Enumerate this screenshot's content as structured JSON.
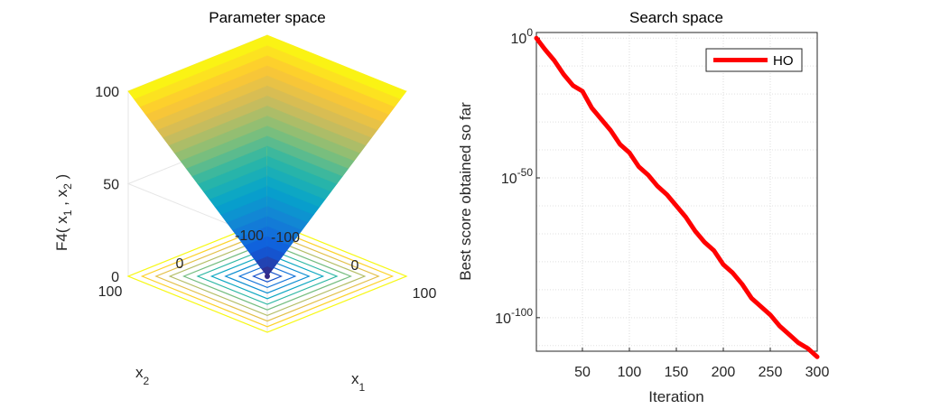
{
  "chart_data": [
    {
      "type": "surface",
      "title": "Parameter space",
      "xlabel": "x",
      "xlabel_sub": "1",
      "ylabel": "x",
      "ylabel_sub": "2",
      "zlabel_prefix": "F4( x",
      "zlabel_sub1": "1",
      "zlabel_mid": " , x",
      "zlabel_sub2": "2",
      "zlabel_suffix": " )",
      "function": "max(|x1|, |x2|)",
      "xlim": [
        -100,
        100
      ],
      "ylim": [
        -100,
        100
      ],
      "zlim": [
        0,
        100
      ],
      "x_ticks": [
        "-100",
        "0",
        "100"
      ],
      "y_ticks": [
        "-100",
        "0",
        "100"
      ],
      "z_ticks": [
        "0",
        "50",
        "100"
      ],
      "contour_levels": [
        10,
        20,
        30,
        40,
        50,
        60,
        70,
        80,
        90,
        100
      ],
      "colormap": [
        "#352a87",
        "#0f5cdd",
        "#1481d6",
        "#06a4ca",
        "#2eb7a4",
        "#87bf77",
        "#d1bb59",
        "#fec832",
        "#f9fb0e"
      ]
    },
    {
      "type": "line",
      "title": "Search space",
      "xlabel": "Iteration",
      "ylabel": "Best score obtained so far",
      "yscale": "log",
      "xlim": [
        1,
        300
      ],
      "ylim_exp": [
        -112,
        2
      ],
      "x_ticks": [
        50,
        100,
        150,
        200,
        250,
        300
      ],
      "y_tick_base": "10",
      "y_tick_exps": [
        "0",
        "-50",
        "-100"
      ],
      "legend_location": "top-right",
      "series": [
        {
          "name": "HO",
          "color": "#ff0000",
          "x": [
            1,
            10,
            20,
            30,
            40,
            50,
            60,
            70,
            80,
            90,
            100,
            110,
            120,
            130,
            140,
            150,
            160,
            170,
            180,
            190,
            200,
            210,
            220,
            230,
            240,
            250,
            260,
            270,
            280,
            290,
            300
          ],
          "log10_y": [
            0,
            -4,
            -8,
            -13,
            -17,
            -19,
            -25,
            -29,
            -33,
            -38,
            -41,
            -46,
            -49,
            -53,
            -56,
            -60,
            -64,
            -69,
            -73,
            -76,
            -81,
            -84,
            -88,
            -93,
            -96,
            -99,
            -103,
            -106,
            -109,
            -111,
            -114
          ]
        }
      ]
    }
  ]
}
